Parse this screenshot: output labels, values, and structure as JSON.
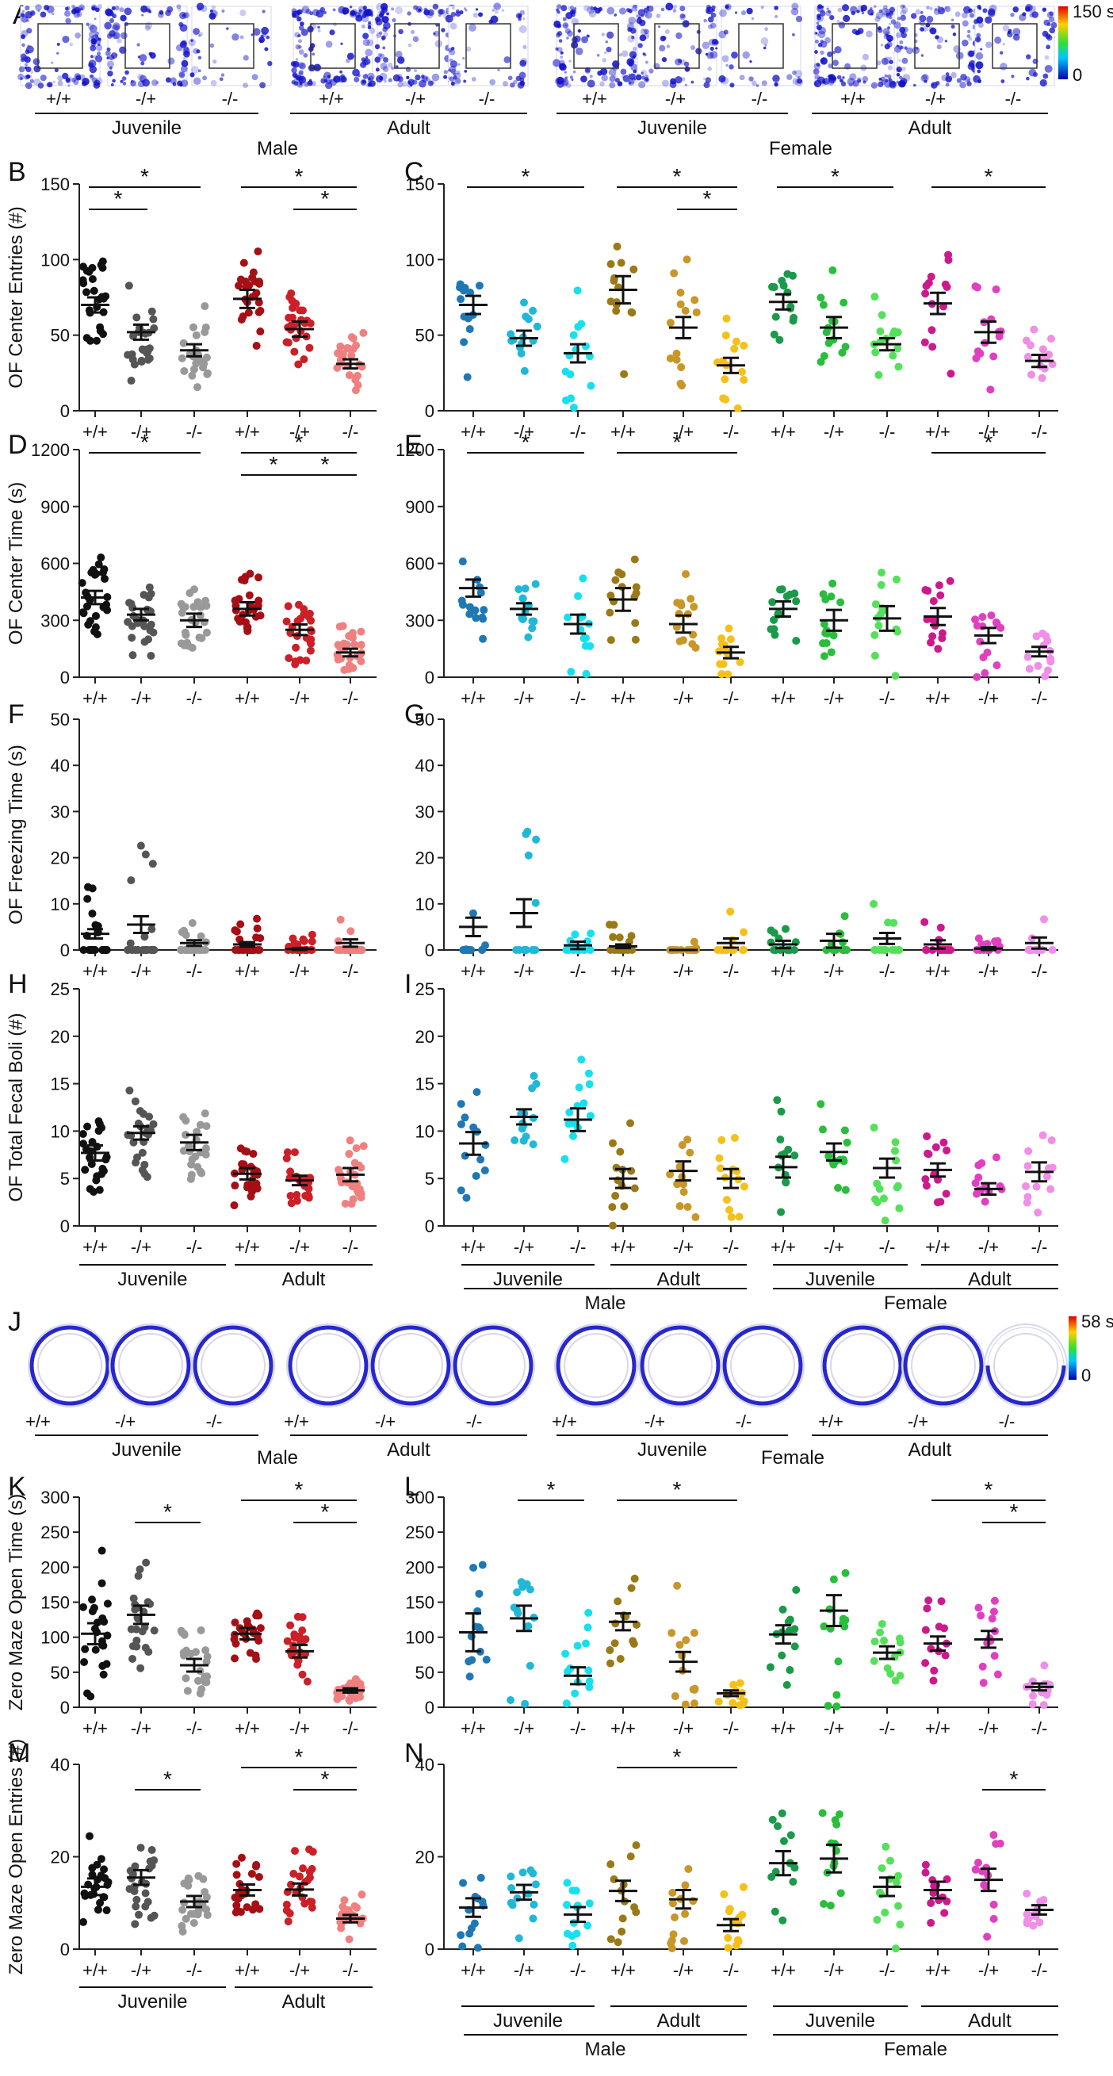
{
  "colors": {
    "male_juv_wt": "#111111",
    "male_juv_het": "#555555",
    "male_juv_ko": "#999999",
    "male_adult_wt": "#a50f15",
    "male_adult_het": "#cb2028",
    "male_adult_ko": "#f08080",
    "fem_m_juv_wt": "#1f78b4",
    "fem_m_juv_het": "#20b8d6",
    "fem_m_juv_ko": "#18dfee",
    "fem_m_adult_wt": "#9a7a18",
    "fem_m_adult_het": "#c9962a",
    "fem_m_adult_ko": "#f5c01a",
    "fem_f_juv_wt": "#1a9a4a",
    "fem_f_juv_het": "#2bbd3d",
    "fem_f_juv_ko": "#55e05c",
    "fem_f_adult_wt": "#cc1a8c",
    "fem_f_adult_het": "#e040c0",
    "fem_f_adult_ko": "#f08ee8",
    "heat_stripe": "#1010c8"
  },
  "panel_letters": [
    "A",
    "B",
    "C",
    "D",
    "E",
    "F",
    "G",
    "H",
    "I",
    "J",
    "K",
    "L",
    "M",
    "N"
  ],
  "genotypes": [
    "+/+",
    "-/+",
    "-/-"
  ],
  "age_labels": [
    "Juvenile",
    "Adult"
  ],
  "sex_labels": [
    "Male",
    "Female"
  ],
  "heatmaps": {
    "of_scale": {
      "max_label": "150 s",
      "min_label": "0"
    },
    "zm_scale": {
      "max_label": "58 s",
      "min_label": "0"
    }
  },
  "chart_data": [
    {
      "id": "B",
      "type": "scatter",
      "ylabel": "OF Center Entries (#)",
      "ylim": [
        0,
        150
      ],
      "yticks": [
        0,
        50,
        100,
        150
      ],
      "groups": [
        {
          "g": "+/+",
          "mean": 70,
          "sem": 5
        },
        {
          "g": "-/+",
          "mean": 52,
          "sem": 5
        },
        {
          "g": "-/-",
          "mean": 40,
          "sem": 4
        },
        {
          "g": "+/+",
          "mean": 74,
          "sem": 6
        },
        {
          "g": "-/+",
          "mean": 54,
          "sem": 5
        },
        {
          "g": "-/-",
          "mean": 31,
          "sem": 3
        }
      ],
      "significance": [
        {
          "from": 0,
          "to": 1,
          "level": 1
        },
        {
          "from": 0,
          "to": 2,
          "level": 2
        },
        {
          "from": 4,
          "to": 5,
          "level": 1
        },
        {
          "from": 3,
          "to": 5,
          "level": 2
        }
      ]
    },
    {
      "id": "C",
      "type": "scatter",
      "ylim": [
        0,
        150
      ],
      "yticks": [
        0,
        50,
        100,
        150
      ],
      "groups": [
        {
          "g": "+/+",
          "mean": 70,
          "sem": 6
        },
        {
          "g": "-/+",
          "mean": 48,
          "sem": 5
        },
        {
          "g": "-/-",
          "mean": 38,
          "sem": 6
        },
        {
          "g": "+/+",
          "mean": 80,
          "sem": 9
        },
        {
          "g": "-/+",
          "mean": 55,
          "sem": 7
        },
        {
          "g": "-/-",
          "mean": 30,
          "sem": 5
        },
        {
          "g": "+/+",
          "mean": 72,
          "sem": 5
        },
        {
          "g": "-/+",
          "mean": 55,
          "sem": 7
        },
        {
          "g": "-/-",
          "mean": 44,
          "sem": 4
        },
        {
          "g": "+/+",
          "mean": 71,
          "sem": 7
        },
        {
          "g": "-/+",
          "mean": 52,
          "sem": 7
        },
        {
          "g": "-/-",
          "mean": 33,
          "sem": 4
        }
      ],
      "significance": [
        {
          "from": 0,
          "to": 2,
          "level": 2
        },
        {
          "from": 4,
          "to": 5,
          "level": 1
        },
        {
          "from": 3,
          "to": 5,
          "level": 2
        },
        {
          "from": 6,
          "to": 8,
          "level": 2
        },
        {
          "from": 9,
          "to": 11,
          "level": 2
        }
      ]
    },
    {
      "id": "D",
      "type": "scatter",
      "ylabel": "OF Center Time (s)",
      "ylim": [
        0,
        1200
      ],
      "yticks": [
        0,
        300,
        600,
        900,
        1200
      ],
      "groups": [
        {
          "g": "+/+",
          "mean": 420,
          "sem": 35
        },
        {
          "g": "-/+",
          "mean": 330,
          "sem": 30
        },
        {
          "g": "-/-",
          "mean": 300,
          "sem": 35
        },
        {
          "g": "+/+",
          "mean": 360,
          "sem": 35
        },
        {
          "g": "-/+",
          "mean": 250,
          "sem": 28
        },
        {
          "g": "-/-",
          "mean": 130,
          "sem": 20
        }
      ],
      "significance": [
        {
          "from": 0,
          "to": 2,
          "level": 2
        },
        {
          "from": 3,
          "to": 4,
          "level": 1
        },
        {
          "from": 4,
          "to": 5,
          "level": 1
        },
        {
          "from": 3,
          "to": 5,
          "level": 2
        }
      ]
    },
    {
      "id": "E",
      "type": "scatter",
      "ylim": [
        0,
        1200
      ],
      "yticks": [
        0,
        300,
        600,
        900,
        1200
      ],
      "groups": [
        {
          "g": "+/+",
          "mean": 470,
          "sem": 45
        },
        {
          "g": "-/+",
          "mean": 360,
          "sem": 30
        },
        {
          "g": "-/-",
          "mean": 280,
          "sem": 50
        },
        {
          "g": "+/+",
          "mean": 410,
          "sem": 60
        },
        {
          "g": "-/+",
          "mean": 280,
          "sem": 45
        },
        {
          "g": "-/-",
          "mean": 130,
          "sem": 30
        },
        {
          "g": "+/+",
          "mean": 360,
          "sem": 40
        },
        {
          "g": "-/+",
          "mean": 300,
          "sem": 55
        },
        {
          "g": "-/-",
          "mean": 310,
          "sem": 65
        },
        {
          "g": "+/+",
          "mean": 320,
          "sem": 45
        },
        {
          "g": "-/+",
          "mean": 220,
          "sem": 40
        },
        {
          "g": "-/-",
          "mean": 135,
          "sem": 25
        }
      ],
      "significance": [
        {
          "from": 0,
          "to": 2,
          "level": 2
        },
        {
          "from": 3,
          "to": 5,
          "level": 2
        },
        {
          "from": 9,
          "to": 11,
          "level": 2
        }
      ]
    },
    {
      "id": "F",
      "type": "scatter",
      "ylabel": "OF Freezing Time (s)",
      "ylim": [
        0,
        50
      ],
      "yticks": [
        0,
        10,
        20,
        30,
        40,
        50
      ],
      "groups": [
        {
          "g": "+/+",
          "mean": 3.5,
          "sem": 1
        },
        {
          "g": "-/+",
          "mean": 5.5,
          "sem": 1.8
        },
        {
          "g": "-/-",
          "mean": 1.5,
          "sem": 0.6
        },
        {
          "g": "+/+",
          "mean": 1.2,
          "sem": 0.5
        },
        {
          "g": "-/+",
          "mean": 0.2,
          "sem": 0.2
        },
        {
          "g": "-/-",
          "mean": 1.5,
          "sem": 0.8
        }
      ],
      "significance": []
    },
    {
      "id": "G",
      "type": "scatter",
      "ylim": [
        0,
        50
      ],
      "yticks": [
        0,
        10,
        20,
        30,
        40,
        50
      ],
      "groups": [
        {
          "g": "+/+",
          "mean": 5,
          "sem": 2
        },
        {
          "g": "-/+",
          "mean": 8,
          "sem": 3
        },
        {
          "g": "-/-",
          "mean": 1,
          "sem": 0.8
        },
        {
          "g": "+/+",
          "mean": 0.8,
          "sem": 0.4
        },
        {
          "g": "-/+",
          "mean": 0,
          "sem": 0
        },
        {
          "g": "-/-",
          "mean": 1.5,
          "sem": 1
        },
        {
          "g": "+/+",
          "mean": 1.2,
          "sem": 0.8
        },
        {
          "g": "-/+",
          "mean": 2,
          "sem": 1.5
        },
        {
          "g": "-/-",
          "mean": 2.5,
          "sem": 1.2
        },
        {
          "g": "+/+",
          "mean": 1.2,
          "sem": 0.9
        },
        {
          "g": "-/+",
          "mean": 0.3,
          "sem": 0.3
        },
        {
          "g": "-/-",
          "mean": 1.5,
          "sem": 1.2
        }
      ],
      "significance": []
    },
    {
      "id": "H",
      "type": "scatter",
      "ylabel": "OF Total Fecal Boli (#)",
      "ylim": [
        0,
        25
      ],
      "yticks": [
        0,
        5,
        10,
        15,
        20,
        25
      ],
      "groups": [
        {
          "g": "+/+",
          "mean": 7.7,
          "sem": 0.8
        },
        {
          "g": "-/+",
          "mean": 9.8,
          "sem": 0.7
        },
        {
          "g": "-/-",
          "mean": 8.8,
          "sem": 0.8
        },
        {
          "g": "+/+",
          "mean": 5.5,
          "sem": 0.6
        },
        {
          "g": "-/+",
          "mean": 4.8,
          "sem": 0.5
        },
        {
          "g": "-/-",
          "mean": 5.4,
          "sem": 0.7
        }
      ],
      "significance": []
    },
    {
      "id": "I",
      "type": "scatter",
      "ylim": [
        0,
        25
      ],
      "yticks": [
        0,
        5,
        10,
        15,
        20,
        25
      ],
      "groups": [
        {
          "g": "+/+",
          "mean": 8.7,
          "sem": 1.2
        },
        {
          "g": "-/+",
          "mean": 11.5,
          "sem": 0.8
        },
        {
          "g": "-/-",
          "mean": 11.2,
          "sem": 1.2
        },
        {
          "g": "+/+",
          "mean": 5,
          "sem": 1
        },
        {
          "g": "-/+",
          "mean": 5.8,
          "sem": 1
        },
        {
          "g": "-/-",
          "mean": 5,
          "sem": 1
        },
        {
          "g": "+/+",
          "mean": 6.2,
          "sem": 1.1
        },
        {
          "g": "-/+",
          "mean": 7.8,
          "sem": 0.9
        },
        {
          "g": "-/-",
          "mean": 6.1,
          "sem": 1
        },
        {
          "g": "+/+",
          "mean": 5.9,
          "sem": 0.7
        },
        {
          "g": "-/+",
          "mean": 3.9,
          "sem": 0.6
        },
        {
          "g": "-/-",
          "mean": 5.7,
          "sem": 1
        }
      ],
      "significance": []
    },
    {
      "id": "K",
      "type": "scatter",
      "ylabel": "Zero Maze Open Time (s)",
      "ylim": [
        0,
        300
      ],
      "yticks": [
        0,
        50,
        100,
        150,
        200,
        250,
        300
      ],
      "groups": [
        {
          "g": "+/+",
          "mean": 105,
          "sem": 15
        },
        {
          "g": "-/+",
          "mean": 132,
          "sem": 13
        },
        {
          "g": "-/-",
          "mean": 60,
          "sem": 9
        },
        {
          "g": "+/+",
          "mean": 105,
          "sem": 8
        },
        {
          "g": "-/+",
          "mean": 80,
          "sem": 9
        },
        {
          "g": "-/-",
          "mean": 24,
          "sem": 3
        }
      ],
      "significance": [
        {
          "from": 1,
          "to": 2,
          "level": 1
        },
        {
          "from": 4,
          "to": 5,
          "level": 1
        },
        {
          "from": 3,
          "to": 5,
          "level": 2
        }
      ]
    },
    {
      "id": "L",
      "type": "scatter",
      "ylim": [
        0,
        300
      ],
      "yticks": [
        0,
        50,
        100,
        150,
        200,
        250,
        300
      ],
      "groups": [
        {
          "g": "+/+",
          "mean": 107,
          "sem": 27
        },
        {
          "g": "-/+",
          "mean": 127,
          "sem": 18
        },
        {
          "g": "-/-",
          "mean": 45,
          "sem": 12
        },
        {
          "g": "+/+",
          "mean": 122,
          "sem": 12
        },
        {
          "g": "-/+",
          "mean": 65,
          "sem": 14
        },
        {
          "g": "-/-",
          "mean": 20,
          "sem": 4
        },
        {
          "g": "+/+",
          "mean": 104,
          "sem": 13
        },
        {
          "g": "-/+",
          "mean": 138,
          "sem": 22
        },
        {
          "g": "-/-",
          "mean": 78,
          "sem": 9
        },
        {
          "g": "+/+",
          "mean": 91,
          "sem": 10
        },
        {
          "g": "-/+",
          "mean": 97,
          "sem": 12
        },
        {
          "g": "-/-",
          "mean": 29,
          "sem": 5
        }
      ],
      "significance": [
        {
          "from": 1,
          "to": 2,
          "level": 2
        },
        {
          "from": 3,
          "to": 5,
          "level": 2
        },
        {
          "from": 10,
          "to": 11,
          "level": 1
        },
        {
          "from": 9,
          "to": 11,
          "level": 2
        }
      ]
    },
    {
      "id": "M",
      "type": "scatter",
      "ylabel": "Zero Maze Open Entries (#)",
      "ylim": [
        0,
        40
      ],
      "yticks": [
        0,
        20,
        40
      ],
      "groups": [
        {
          "g": "+/+",
          "mean": 13.5,
          "sem": 1.8
        },
        {
          "g": "-/+",
          "mean": 15.5,
          "sem": 1.6
        },
        {
          "g": "-/-",
          "mean": 10.3,
          "sem": 1.2
        },
        {
          "g": "+/+",
          "mean": 12.8,
          "sem": 1.2
        },
        {
          "g": "-/+",
          "mean": 12.9,
          "sem": 1.3
        },
        {
          "g": "-/-",
          "mean": 6.6,
          "sem": 0.8
        }
      ],
      "significance": [
        {
          "from": 1,
          "to": 2,
          "level": 1
        },
        {
          "from": 4,
          "to": 5,
          "level": 1
        },
        {
          "from": 3,
          "to": 5,
          "level": 2
        }
      ]
    },
    {
      "id": "N",
      "type": "scatter",
      "ylim": [
        0,
        40
      ],
      "yticks": [
        0,
        20,
        40
      ],
      "groups": [
        {
          "g": "+/+",
          "mean": 9,
          "sem": 2
        },
        {
          "g": "-/+",
          "mean": 12.3,
          "sem": 1.6
        },
        {
          "g": "-/-",
          "mean": 7.5,
          "sem": 1.6
        },
        {
          "g": "+/+",
          "mean": 12.6,
          "sem": 2.2
        },
        {
          "g": "-/+",
          "mean": 10.8,
          "sem": 2
        },
        {
          "g": "-/-",
          "mean": 5.2,
          "sem": 1.3
        },
        {
          "g": "+/+",
          "mean": 18.6,
          "sem": 2.6
        },
        {
          "g": "-/+",
          "mean": 19.6,
          "sem": 3
        },
        {
          "g": "-/-",
          "mean": 13.5,
          "sem": 2
        },
        {
          "g": "+/+",
          "mean": 12.8,
          "sem": 1.8
        },
        {
          "g": "-/+",
          "mean": 15,
          "sem": 2.4
        },
        {
          "g": "-/-",
          "mean": 8.5,
          "sem": 1
        }
      ],
      "significance": [
        {
          "from": 3,
          "to": 5,
          "level": 2
        },
        {
          "from": 10,
          "to": 11,
          "level": 1
        }
      ]
    }
  ]
}
